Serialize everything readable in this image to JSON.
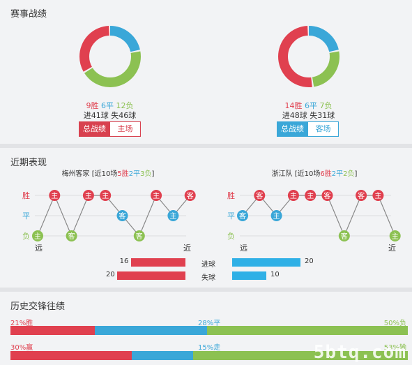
{
  "sections": {
    "record": "赛事战绩",
    "recent": "近期表现",
    "history": "历史交锋往绩"
  },
  "record": {
    "left": {
      "win": "9胜",
      "draw": "6平",
      "loss": "12负",
      "goals": "进41球",
      "conceded": "失46球",
      "donut": {
        "win": 9,
        "draw": 6,
        "loss": 12
      },
      "tab_active": "总战绩",
      "tab_other": "主场"
    },
    "right": {
      "win": "14胜",
      "draw": "6平",
      "loss": "7负",
      "goals": "进48球",
      "conceded": "失31球",
      "donut": {
        "win": 14,
        "draw": 6,
        "loss": 7
      },
      "tab_active": "总战绩",
      "tab_other": "客场"
    }
  },
  "recent": {
    "left": {
      "team": "梅州客家",
      "summary_pre": "[近10场",
      "w": "5胜",
      "d": "2平",
      "l": "3负",
      "summary_post": "]",
      "results": [
        "L",
        "W",
        "L",
        "W",
        "W",
        "D",
        "L",
        "W",
        "D",
        "W"
      ],
      "venues": [
        "主",
        "主",
        "客",
        "主",
        "主",
        "客",
        "客",
        "主",
        "主",
        "客"
      ]
    },
    "right": {
      "team": "浙江队",
      "summary_pre": "[近10场",
      "w": "6胜",
      "d": "2平",
      "l": "2负",
      "summary_post": "]",
      "results": [
        "D",
        "W",
        "D",
        "W",
        "W",
        "W",
        "L",
        "W",
        "W",
        "L"
      ],
      "venues": [
        "客",
        "客",
        "主",
        "主",
        "主",
        "客",
        "客",
        "客",
        "主",
        "主"
      ]
    },
    "labels": {
      "win": "胜",
      "draw": "平",
      "loss": "负",
      "far": "远",
      "near": "近"
    },
    "goals": {
      "label": "进球",
      "left": 16,
      "right": 20
    },
    "conceded": {
      "label": "失球",
      "left": 20,
      "right": 10
    }
  },
  "history": {
    "row1": {
      "win_label": "21%胜",
      "draw_label": "28%平",
      "loss_label": "50%负",
      "win": 21,
      "draw": 28,
      "loss": 50
    },
    "row2": {
      "win_label": "30%赢",
      "draw_label": "15%走",
      "loss_label": "53%输",
      "win": 30,
      "draw": 15,
      "loss": 53
    }
  },
  "watermark": "5btq.com",
  "colors": {
    "win": "#e0404f",
    "draw": "#3aa7d8",
    "loss": "#8cc152",
    "tab_left": "#d8414f",
    "tab_right": "#3aa7d8"
  }
}
